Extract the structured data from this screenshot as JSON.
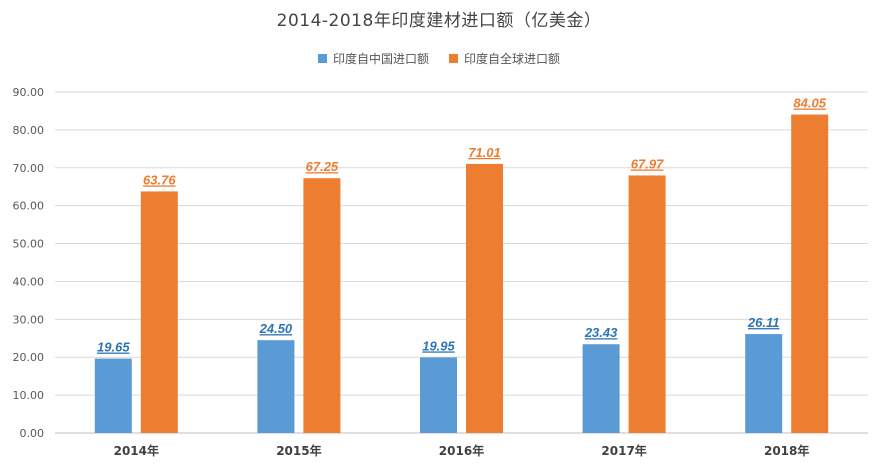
{
  "chart_data": {
    "type": "bar",
    "title": "2014-2018年印度建材进口额（亿美金）",
    "categories": [
      "2014年",
      "2015年",
      "2016年",
      "2017年",
      "2018年"
    ],
    "series": [
      {
        "name": "印度自中国进口额",
        "values": [
          19.65,
          24.5,
          19.95,
          23.43,
          26.11
        ],
        "labels": [
          "19.65",
          "24.50",
          "19.95",
          "23.43",
          "26.11"
        ],
        "color": "#5b9bd5",
        "label_color": "#2e75b6"
      },
      {
        "name": "印度自全球进口额",
        "values": [
          63.76,
          67.25,
          71.01,
          67.97,
          84.05
        ],
        "labels": [
          "63.76",
          "67.25",
          "71.01",
          "67.97",
          "84.05"
        ],
        "color": "#ed7d31",
        "label_color": "#ed7d31"
      }
    ],
    "ylim": [
      0,
      90
    ],
    "yticks": [
      "0.00",
      "10.00",
      "20.00",
      "30.00",
      "40.00",
      "50.00",
      "60.00",
      "70.00",
      "80.00",
      "90.00"
    ],
    "ytick_values": [
      0,
      10,
      20,
      30,
      40,
      50,
      60,
      70,
      80,
      90
    ],
    "grid": true,
    "legend_position": "top-center",
    "xlabel": "",
    "ylabel": ""
  }
}
